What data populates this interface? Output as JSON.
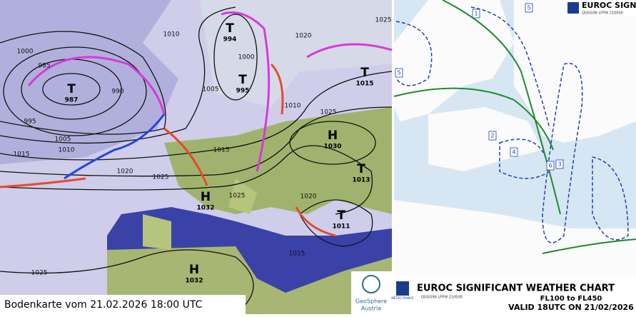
{
  "surface_map": {
    "caption": "Bodenkarte vom 21.02.2026 18:00 UTC",
    "logo": {
      "line1": "GeoSphere",
      "line2": "Austria"
    },
    "pressure_centers": [
      {
        "type": "T",
        "value": "987"
      },
      {
        "type": "T",
        "value": "994"
      },
      {
        "type": "T",
        "value": "995"
      },
      {
        "type": "T",
        "value": "1015"
      },
      {
        "type": "H",
        "value": "1030"
      },
      {
        "type": "T",
        "value": "1013"
      },
      {
        "type": "T",
        "value": "1011"
      },
      {
        "type": "H",
        "value": "1032"
      },
      {
        "type": "H",
        "value": "1032"
      }
    ],
    "isobar_labels": [
      "1000",
      "985",
      "990",
      "995",
      "1005",
      "1010",
      "1015",
      "1020",
      "1025",
      "1010",
      "1020",
      "1000",
      "1005",
      "1010",
      "1015",
      "1025",
      "1025",
      "1020",
      "1015",
      "1025",
      "1025"
    ]
  },
  "sigwx_chart": {
    "header_title": "EUROC SIGNI",
    "header_logo": "METEO FRANCE",
    "header_code": "QGGG96 LFPW 210000",
    "title": "EUROC SIGNIFICANT WEATHER CHART",
    "levels": "FL100 to FL450",
    "valid": "VALID 18UTC ON 21/02/2026",
    "footer_code": "QGGG96 LFPW 210000",
    "footer_logo": "METEO FRANCE",
    "area_labels": [
      "1",
      "2",
      "3",
      "4",
      "5",
      "5",
      "6"
    ]
  }
}
